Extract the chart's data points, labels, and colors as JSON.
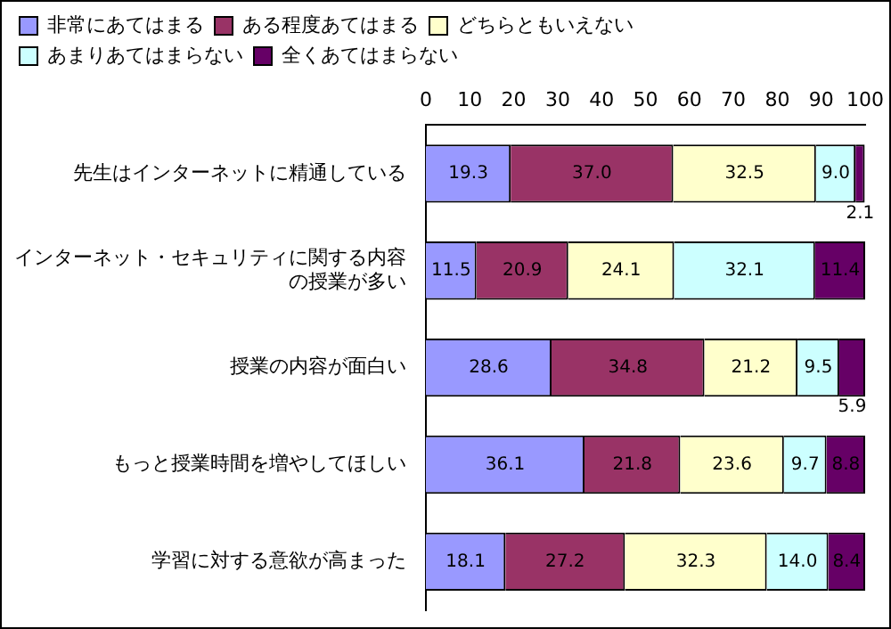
{
  "chart_data": {
    "type": "bar",
    "orientation": "horizontal",
    "stacked": true,
    "categories": [
      "先生はインターネットに精通している",
      "インターネット・セキュリティに関する内容の授業が多い",
      "授業の内容が面白い",
      "もっと授業時間を増やしてほしい",
      "学習に対する意欲が高まった"
    ],
    "series": [
      {
        "name": "非常にあてはまる",
        "color": "#9999ff",
        "values": [
          19.3,
          11.5,
          28.6,
          36.1,
          18.1
        ],
        "value_labels": [
          "19.3",
          "11.5",
          "28.6",
          "36.1",
          "18.1"
        ]
      },
      {
        "name": "ある程度あてはまる",
        "color": "#993366",
        "values": [
          37.0,
          20.9,
          34.8,
          21.8,
          27.2
        ],
        "value_labels": [
          "37.0",
          "20.9",
          "34.8",
          "21.8",
          "27.2"
        ]
      },
      {
        "name": "どちらともいえない",
        "color": "#ffffcc",
        "values": [
          32.5,
          24.1,
          21.2,
          23.6,
          32.3
        ],
        "value_labels": [
          "32.5",
          "24.1",
          "21.2",
          "23.6",
          "32.3"
        ]
      },
      {
        "name": "あまりあてはまらない",
        "color": "#ccffff",
        "values": [
          9.0,
          32.1,
          9.5,
          9.7,
          14.0
        ],
        "value_labels": [
          "9.0",
          "32.1",
          "9.5",
          "9.7",
          "14.0"
        ]
      },
      {
        "name": "全くあてはまらない",
        "color": "#660066",
        "values": [
          2.1,
          11.4,
          5.9,
          8.8,
          8.4
        ],
        "value_labels": [
          "2.1",
          "11.4",
          "5.9",
          "8.8",
          "8.4"
        ]
      }
    ],
    "xlim": [
      0,
      100
    ],
    "xticks": [
      0,
      10,
      20,
      30,
      40,
      50,
      60,
      70,
      80,
      90,
      100
    ],
    "grid": false,
    "legend": "top"
  }
}
